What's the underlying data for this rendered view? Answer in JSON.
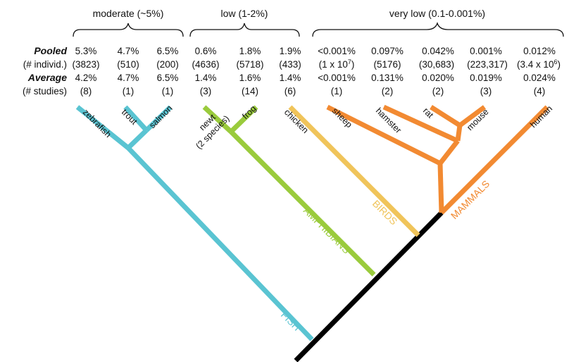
{
  "colors": {
    "fish": "#5ac4d2",
    "amphibians": "#9acb3c",
    "birds": "#f0c45a",
    "mammals": "#f28a32",
    "trunk": "#000000"
  },
  "categories": {
    "moderate": "moderate (~5%)",
    "low": "low (1-2%)",
    "very_low": "very low (0.1-0.001%)"
  },
  "rows": {
    "pooled": "Pooled",
    "individuals": "(# individ.)",
    "average": "Average",
    "studies": "(# studies)"
  },
  "species": [
    {
      "name": "zebrafish",
      "pooled": "5.3%",
      "individ": "(3823)",
      "average": "4.2%",
      "studies": "(8)"
    },
    {
      "name": "trout",
      "pooled": "4.7%",
      "individ": "(510)",
      "average": "4.7%",
      "studies": "(1)"
    },
    {
      "name": "salmon",
      "pooled": "6.5%",
      "individ": "(200)",
      "average": "6.5%",
      "studies": "(1)"
    },
    {
      "name": "newt",
      "name2": "(2 species)",
      "pooled": "0.6%",
      "individ": "(4636)",
      "average": "1.4%",
      "studies": "(3)"
    },
    {
      "name": "frog",
      "pooled": "1.8%",
      "individ": "(5718)",
      "average": "1.6%",
      "studies": "(14)"
    },
    {
      "name": "chicken",
      "pooled": "1.9%",
      "individ": "(433)",
      "average": "1.4%",
      "studies": "(6)"
    },
    {
      "name": "sheep",
      "pooled": "<0.001%",
      "individ": "(1 x 10",
      "individ_sup": "7",
      "individ_end": ")",
      "average": "<0.001%",
      "studies": "(1)"
    },
    {
      "name": "hamster",
      "pooled": "0.097%",
      "individ": "(5176)",
      "average": "0.131%",
      "studies": "(2)"
    },
    {
      "name": "rat",
      "pooled": "0.042%",
      "individ": "(30,683)",
      "average": "0.020%",
      "studies": "(2)"
    },
    {
      "name": "mouse",
      "pooled": "0.001%",
      "individ": "(223,317)",
      "average": "0.019%",
      "studies": "(3)"
    },
    {
      "name": "human",
      "pooled": "0.012%",
      "individ": "(3.4 x 10",
      "individ_sup": "6",
      "individ_end": ")",
      "average": "0.024%",
      "studies": "(4)"
    }
  ],
  "groups": {
    "fish": "FISH",
    "amphibians": "AMPHIBIANS",
    "birds": "BIRDS",
    "mammals": "MAMMALS"
  }
}
